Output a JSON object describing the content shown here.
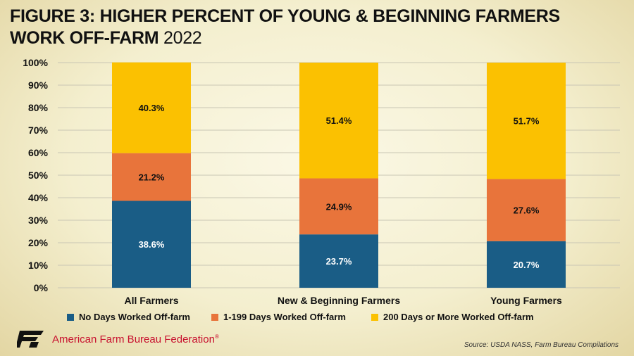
{
  "title": {
    "main": "FIGURE 3: HIGHER PERCENT OF YOUNG & BEGINNING FARMERS WORK OFF-FARM",
    "year": "2022"
  },
  "chart_data": {
    "type": "bar",
    "stacked": true,
    "categories": [
      "All Farmers",
      "New & Beginning Farmers",
      "Young Farmers"
    ],
    "series": [
      {
        "name": "No Days Worked Off-farm",
        "color": "#1a5d86",
        "values": [
          38.6,
          23.7,
          20.7
        ],
        "labels": [
          "38.6%",
          "23.7%",
          "20.7%"
        ]
      },
      {
        "name": "1-199 Days Worked Off-farm",
        "color": "#e8743b",
        "values": [
          21.2,
          24.9,
          27.6
        ],
        "labels": [
          "21.2%",
          "24.9%",
          "27.6%"
        ]
      },
      {
        "name": "200 Days or More Worked Off-farm",
        "color": "#fbc101",
        "values": [
          40.3,
          51.4,
          51.7
        ],
        "labels": [
          "40.3%",
          "51.4%",
          "51.7%"
        ]
      }
    ],
    "ylim": [
      0,
      100
    ],
    "yticks": [
      "0%",
      "10%",
      "20%",
      "30%",
      "40%",
      "50%",
      "60%",
      "70%",
      "80%",
      "90%",
      "100%"
    ],
    "grid": true,
    "legend_position": "bottom"
  },
  "footer": {
    "org_name": "American Farm Bureau Federation",
    "org_mark": "®",
    "logo_text": "FB",
    "source": "Source: USDA NASS, Farm Bureau Compilations"
  }
}
